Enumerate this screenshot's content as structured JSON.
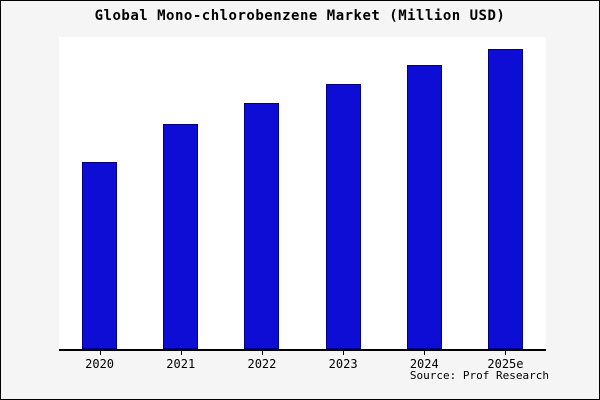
{
  "title": "Global Mono-chlorobenzene Market (Million USD)",
  "source": "Source: Prof Research",
  "colors": {
    "bar": "#0d0dd6",
    "bar_edge": "#000080",
    "background": "#f5f5f5",
    "plot_background": "#ffffff",
    "axis": "#000000"
  },
  "chart_data": {
    "type": "bar",
    "title": "Global Mono-chlorobenzene Market (Million USD)",
    "categories": [
      "2020",
      "2021",
      "2022",
      "2023",
      "2024",
      "2025e"
    ],
    "values": [
      60,
      72,
      79,
      85,
      91,
      96
    ],
    "xlabel": "",
    "ylabel": "",
    "ylim": [
      0,
      100
    ],
    "grid": false,
    "legend": false,
    "source": "Source: Prof Research"
  }
}
